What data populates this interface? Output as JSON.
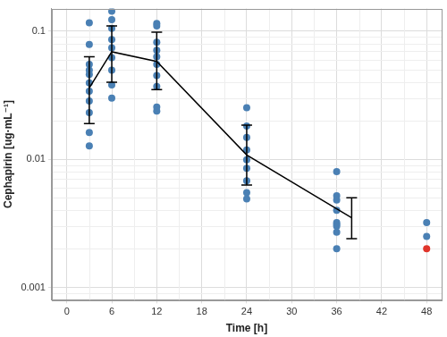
{
  "chart_data": {
    "type": "scatter",
    "x_label": "Time [h]",
    "y_label": "Cephapirin [ug·mL⁻¹]",
    "log": "y",
    "grid": true,
    "xlim": [
      -2,
      50
    ],
    "xticks": [
      0,
      6,
      12,
      18,
      24,
      30,
      36,
      42,
      48
    ],
    "ylim": [
      0.0008,
      0.15
    ],
    "yticks": [
      0.001,
      0.01,
      0.1
    ],
    "series": [
      {
        "type": "scatter",
        "color": "#4a80b4",
        "x": [
          3,
          3,
          3,
          3,
          3,
          3,
          3,
          3,
          3,
          3,
          3,
          6,
          6,
          6,
          6,
          6,
          6,
          6,
          6,
          6,
          12,
          12,
          12,
          12,
          12,
          12,
          12,
          12,
          12,
          12,
          24,
          24,
          24,
          24,
          24,
          24,
          24,
          24,
          24,
          36,
          36,
          36,
          36,
          36,
          36,
          36,
          36,
          36,
          48,
          48
        ],
        "values": [
          0.116,
          0.0787,
          0.055,
          0.0495,
          0.046,
          0.0395,
          0.034,
          0.0285,
          0.0231,
          0.0162,
          0.0127,
          0.143,
          0.123,
          0.105,
          0.086,
          0.074,
          0.062,
          0.0495,
          0.038,
          0.03,
          0.115,
          0.11,
          0.082,
          0.071,
          0.063,
          0.055,
          0.045,
          0.037,
          0.0256,
          0.0238,
          0.0253,
          0.0182,
          0.0148,
          0.0118,
          0.0099,
          0.0085,
          0.0068,
          0.0055,
          0.0049,
          0.008,
          0.0052,
          0.0048,
          0.004,
          0.0032,
          0.0031,
          0.003,
          0.0027,
          0.002,
          0.0032,
          0.0025
        ]
      },
      {
        "type": "scatter",
        "color": "#e0352b",
        "x": [
          48
        ],
        "values": [
          0.002
        ]
      },
      {
        "type": "line",
        "color": "#000000",
        "x": [
          3,
          6,
          12,
          24,
          38
        ],
        "values": [
          0.036,
          0.069,
          0.058,
          0.0108,
          0.0035
        ],
        "error_low": [
          0.019,
          0.04,
          0.035,
          0.0063,
          0.0024
        ],
        "error_high": [
          0.063,
          0.11,
          0.098,
          0.0185,
          0.005
        ]
      }
    ]
  }
}
